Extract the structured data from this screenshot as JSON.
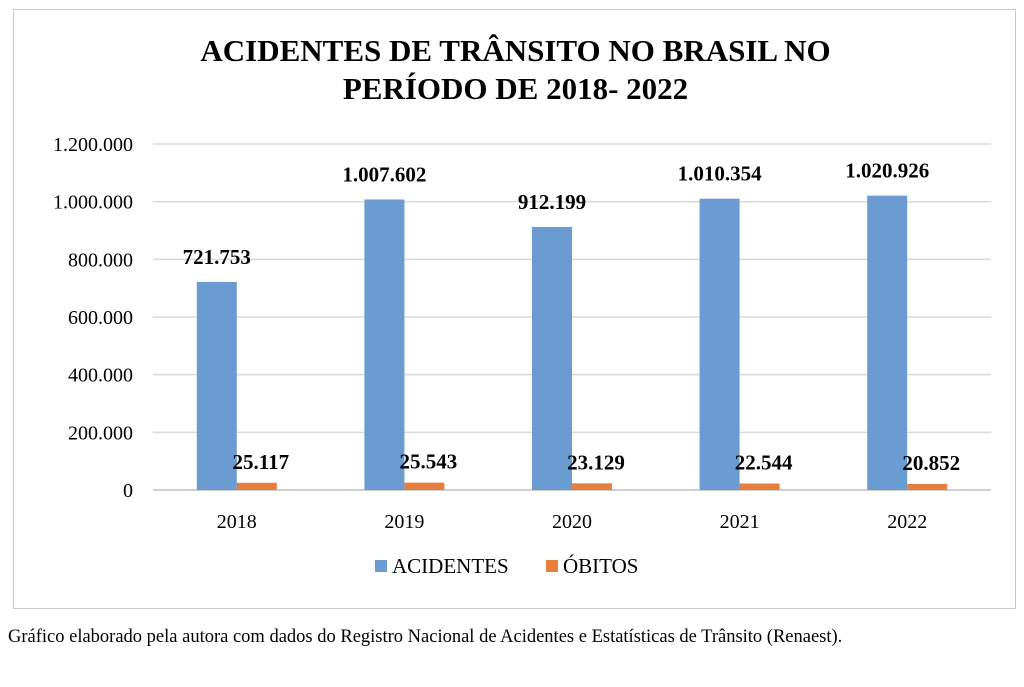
{
  "chart_data": {
    "type": "bar",
    "title_lines": [
      "ACIDENTES DE TRÂNSITO NO BRASIL NO",
      "PERÍODO DE 2018- 2022"
    ],
    "categories": [
      "2018",
      "2019",
      "2020",
      "2021",
      "2022"
    ],
    "series": [
      {
        "name": "ACIDENTES",
        "values": [
          721753,
          1007602,
          912199,
          1010354,
          1020926
        ],
        "labels": [
          "721.753",
          "1.007.602",
          "912.199",
          "1.010.354",
          "1.020.926"
        ],
        "color": "#6a9bd1"
      },
      {
        "name": "ÓBITOS",
        "values": [
          25117,
          25543,
          23129,
          22544,
          20852
        ],
        "labels": [
          "25.117",
          "25.543",
          "23.129",
          "22.544",
          "20.852"
        ],
        "color": "#e67e3c"
      }
    ],
    "yticks": [
      0,
      200000,
      400000,
      600000,
      800000,
      1000000,
      1200000
    ],
    "ytick_labels": [
      "0",
      "200.000",
      "400.000",
      "600.000",
      "800.000",
      "1.000.000",
      "1.200.000"
    ],
    "ylim": [
      0,
      1200000
    ],
    "grid": true,
    "legend": "bottom-center",
    "gridline_color": "#d9d9d9"
  },
  "caption": "Gráfico elaborado pela autora com dados do Registro Nacional de Acidentes e Estatísticas de Trânsito (Renaest)."
}
